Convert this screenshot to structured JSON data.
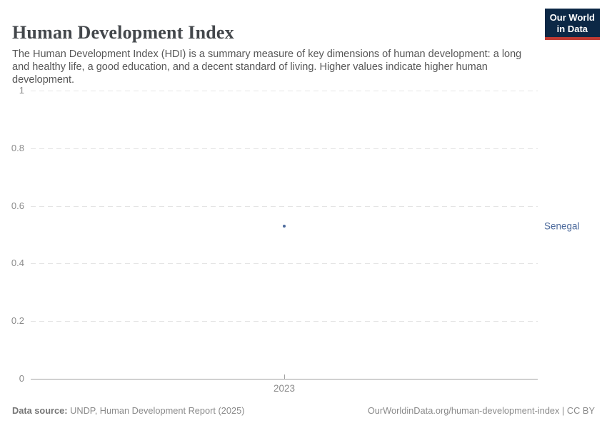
{
  "header": {
    "title": "Human Development Index",
    "subtitle": "The Human Development Index (HDI) is a summary measure of key dimensions of human development: a long and healthy life, a good education, and a decent standard of living. Higher values indicate higher human development.",
    "logo_line1": "Our World",
    "logo_line2": "in Data"
  },
  "chart_data": {
    "type": "scatter",
    "title": "Human Development Index",
    "x": [
      2023
    ],
    "series": [
      {
        "name": "Senegal",
        "values": [
          0.53
        ]
      }
    ],
    "ylim": [
      0,
      1
    ],
    "y_ticks": [
      "1",
      "0.8",
      "0.6",
      "0.4",
      "0.2",
      "0"
    ],
    "x_ticks": [
      "2023"
    ],
    "grid": "horizontal-dashed",
    "legend_position": "entity-label-right-of-point"
  },
  "footer": {
    "datasource_label": "Data source:",
    "datasource_text": " UNDP, Human Development Report (2025)",
    "credit": "OurWorldinData.org/human-development-index | CC BY"
  },
  "colors": {
    "accent": "#4c6a9c",
    "logo_bg": "#0c2846",
    "logo_red": "#bf3a33",
    "grid": "#e4e4e4",
    "axis": "#a1a1a1"
  }
}
